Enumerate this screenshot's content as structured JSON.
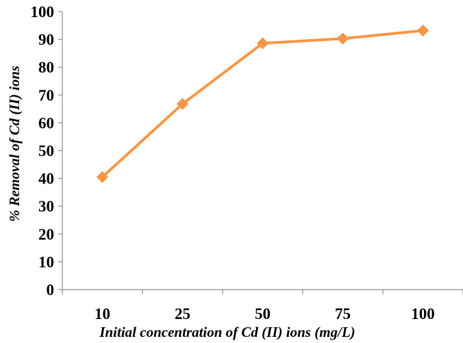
{
  "chart_data": {
    "type": "line",
    "title": "",
    "xlabel": "Initial concentration of Cd (II) ions (mg/L)",
    "ylabel": "% Removal of Cd (II) ions",
    "categories": [
      "10",
      "25",
      "50",
      "75",
      "100"
    ],
    "series": [
      {
        "values": [
          40.5,
          66.8,
          88.6,
          90.3,
          93.2
        ],
        "marker": "diamond"
      }
    ],
    "yticks": [
      "0",
      "10",
      "20",
      "30",
      "40",
      "50",
      "60",
      "70",
      "80",
      "90",
      "100"
    ],
    "ylim": [
      0,
      100
    ],
    "grid": false,
    "legend": "none",
    "colors": {
      "series": "#F79646",
      "axis": "#8C8C8C",
      "text": "#000000"
    }
  }
}
